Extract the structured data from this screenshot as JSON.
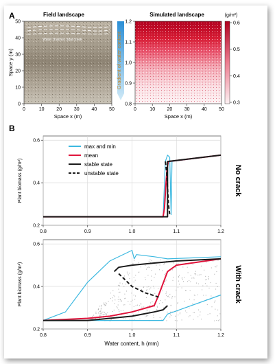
{
  "panel_a": {
    "label": "A",
    "field": {
      "title": "Field landscape",
      "annotation": "Water channel; tidal creek",
      "xlabel": "Space x (m)",
      "ylabel": "Space y (m)",
      "xticks": [
        "0",
        "10",
        "20",
        "30",
        "40",
        "50"
      ],
      "yticks": [
        "0",
        "10",
        "20",
        "30",
        "40",
        "50"
      ]
    },
    "gradient_label": "Gradient of water content",
    "simulated": {
      "title": "Simulated landscape",
      "unit": "(g/m²)",
      "xlabel": "Space x (m)",
      "xticks": [
        "0",
        "10",
        "20",
        "30",
        "40",
        "50"
      ],
      "yticks": [
        "0.8",
        "0.9",
        "1.0",
        "1.1",
        "1.2"
      ],
      "colorbar_ticks": [
        "0.6",
        "0.5",
        "0.4",
        "0.3"
      ]
    }
  },
  "panel_b": {
    "label": "B",
    "legend": [
      "max and min",
      "mean",
      "stable state",
      "unstable state"
    ],
    "top_side_label": "No crack",
    "bottom_side_label": "With crack",
    "ylabel": "Plant biomass (g/m²)",
    "xlabel": "Water content, h (mm)",
    "xticks": [
      "0.8",
      "0.9",
      "1.0",
      "1.1",
      "1.2"
    ],
    "yticks": [
      "0.2",
      "0.4",
      "0.6"
    ]
  },
  "colors": {
    "maxmin": "#3bb8e0",
    "mean": "#e0143c",
    "stable": "#1a1a1a",
    "scatter": "#9a9a9a",
    "heat_high": "#c8102e"
  },
  "chart_data": [
    {
      "type": "line",
      "title": "No crack",
      "xlabel": "Water content, h (mm)",
      "ylabel": "Plant biomass (g/m²)",
      "xlim": [
        0.8,
        1.2
      ],
      "ylim": [
        0.2,
        0.62
      ],
      "series": [
        {
          "name": "max and min",
          "x": [
            0.8,
            1.07,
            1.072,
            1.075,
            1.08,
            1.085,
            1.088,
            1.09,
            1.2
          ],
          "y": [
            0.24,
            0.24,
            0.34,
            0.5,
            0.53,
            0.52,
            0.25,
            0.5,
            0.53
          ]
        },
        {
          "name": "mean",
          "x": [
            0.8,
            1.07,
            1.073,
            1.076,
            1.079,
            1.082,
            1.2
          ],
          "y": [
            0.24,
            0.24,
            0.28,
            0.38,
            0.47,
            0.5,
            0.53
          ]
        },
        {
          "name": "stable state",
          "x": [
            0.8,
            1.08,
            1.08,
            1.2
          ],
          "y": [
            0.24,
            0.24,
            0.5,
            0.53
          ]
        },
        {
          "name": "unstable state",
          "x": [
            1.075,
            1.078,
            1.08,
            1.082,
            1.085
          ],
          "y": [
            0.5,
            0.45,
            0.38,
            0.3,
            0.25
          ]
        }
      ]
    },
    {
      "type": "line",
      "title": "With crack",
      "xlabel": "Water content, h (mm)",
      "ylabel": "Plant biomass (g/m²)",
      "xlim": [
        0.8,
        1.2
      ],
      "ylim": [
        0.2,
        0.62
      ],
      "series": [
        {
          "name": "max and min (upper)",
          "x": [
            0.8,
            0.85,
            0.9,
            0.95,
            1.0,
            1.005,
            1.01,
            1.05,
            1.08,
            1.2
          ],
          "y": [
            0.24,
            0.28,
            0.42,
            0.52,
            0.57,
            0.53,
            0.55,
            0.54,
            0.53,
            0.54
          ]
        },
        {
          "name": "max and min (lower)",
          "x": [
            0.8,
            1.0,
            1.07,
            1.08,
            1.2
          ],
          "y": [
            0.24,
            0.24,
            0.24,
            0.27,
            0.36
          ]
        },
        {
          "name": "mean",
          "x": [
            0.8,
            0.9,
            0.95,
            1.0,
            1.05,
            1.06,
            1.08,
            1.1,
            1.2
          ],
          "y": [
            0.24,
            0.25,
            0.26,
            0.28,
            0.31,
            0.36,
            0.47,
            0.5,
            0.53
          ]
        },
        {
          "name": "stable state (upper)",
          "x": [
            0.96,
            0.97,
            1.0,
            1.05,
            1.1,
            1.2
          ],
          "y": [
            0.47,
            0.49,
            0.5,
            0.51,
            0.52,
            0.53
          ]
        },
        {
          "name": "stable state (lower)",
          "x": [
            0.8,
            0.9,
            0.95,
            1.0,
            1.05,
            1.07,
            1.08
          ],
          "y": [
            0.24,
            0.24,
            0.25,
            0.26,
            0.28,
            0.29,
            0.31
          ]
        },
        {
          "name": "unstable state",
          "x": [
            0.97,
            1.0,
            1.03,
            1.06
          ],
          "y": [
            0.46,
            0.4,
            0.37,
            0.35
          ]
        }
      ]
    }
  ]
}
